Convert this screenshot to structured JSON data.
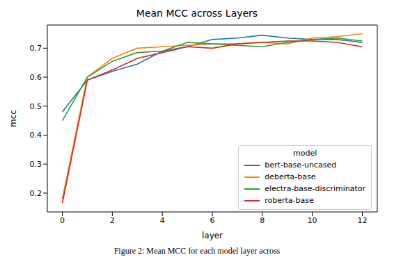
{
  "chart_data": {
    "type": "line",
    "title": "Mean MCC across Layers",
    "x_label": "layer",
    "y_label": "mcc",
    "legend_title": "model",
    "legend": "lower right",
    "caption": "Figure 2: Mean MCC for each model layer across",
    "x": [
      0,
      1,
      2,
      3,
      4,
      5,
      6,
      7,
      8,
      9,
      10,
      11,
      12
    ],
    "xlim": [
      -0.6,
      12.6
    ],
    "xticks": [
      0,
      2,
      4,
      6,
      8,
      10,
      12
    ],
    "ylim": [
      0.135,
      0.78
    ],
    "yticks": [
      0.2,
      0.3,
      0.4,
      0.5,
      0.6,
      0.7
    ],
    "grid": false,
    "series": [
      {
        "name": "bert-base-uncased",
        "color": "#1f77b4",
        "values": [
          0.48,
          0.59,
          0.62,
          0.645,
          0.69,
          0.705,
          0.73,
          0.735,
          0.745,
          0.735,
          0.73,
          0.73,
          0.72
        ]
      },
      {
        "name": "deberta-base",
        "color": "#ff7f0e",
        "values": [
          0.18,
          0.6,
          0.665,
          0.7,
          0.705,
          0.71,
          0.715,
          0.715,
          0.72,
          0.715,
          0.735,
          0.74,
          0.75
        ]
      },
      {
        "name": "electra-base-discriminator",
        "color": "#2ca02c",
        "values": [
          0.45,
          0.6,
          0.655,
          0.685,
          0.69,
          0.72,
          0.715,
          0.71,
          0.705,
          0.72,
          0.73,
          0.735,
          0.725
        ]
      },
      {
        "name": "roberta-base",
        "color": "#d62728",
        "values": [
          0.165,
          0.59,
          0.625,
          0.665,
          0.685,
          0.705,
          0.7,
          0.715,
          0.72,
          0.725,
          0.725,
          0.72,
          0.705
        ]
      }
    ]
  }
}
